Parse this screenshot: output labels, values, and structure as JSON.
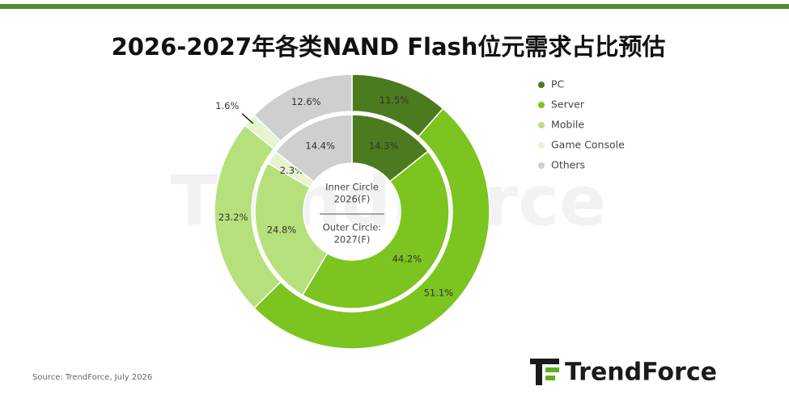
{
  "chart_data": {
    "type": "donut",
    "title": "2026-2027年各类NAND Flash位元需求占比预估",
    "categories": [
      "PC",
      "Server",
      "Mobile",
      "Game Console",
      "Others"
    ],
    "colors": [
      "#4b7a1f",
      "#7cc41f",
      "#b6e07c",
      "#e6f4cf",
      "#cfcfcf"
    ],
    "series": [
      {
        "label_lines": [
          "Inner Circle",
          "2026(F)"
        ],
        "values": [
          14.3,
          44.2,
          24.8,
          2.3,
          14.4
        ],
        "value_labels": [
          "14.3%",
          "44.2%",
          "24.8%",
          "2.3%",
          "14.4%"
        ]
      },
      {
        "label_lines": [
          "Outer Circle:",
          "2027(F)"
        ],
        "values": [
          11.5,
          51.1,
          23.2,
          1.6,
          12.6
        ],
        "value_labels": [
          "11.5%",
          "51.1%",
          "23.2%",
          "1.6%",
          "12.6%"
        ]
      }
    ],
    "legend": "right",
    "source": "Source: TrendForce, July 2026",
    "logo": "TrendForce"
  }
}
